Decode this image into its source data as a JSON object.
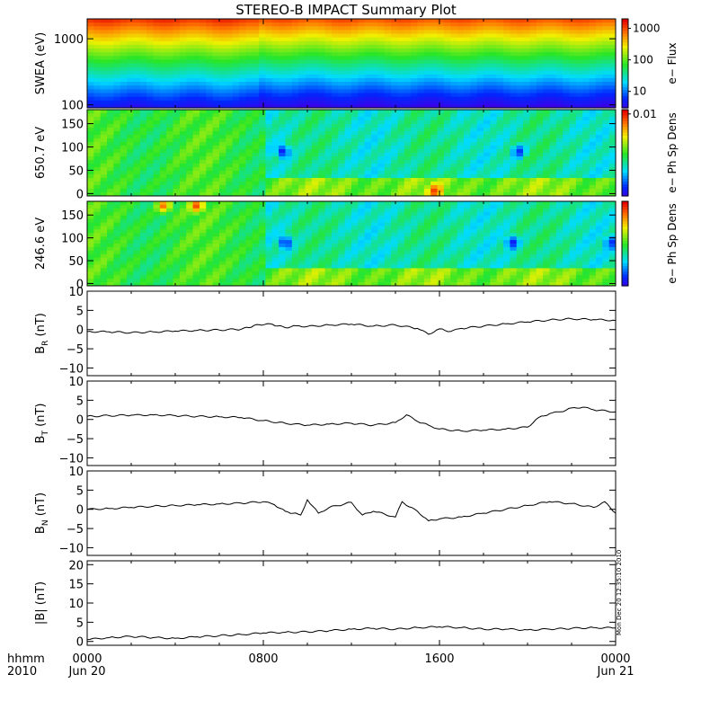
{
  "title": "STEREO-B IMPACT Summary Plot",
  "stamp": "Mon Dec 20 12:35:10 2010",
  "chart_data": [
    {
      "id": "swea",
      "type": "heatmap",
      "ylabel": "SWEA (eV)",
      "ylog": true,
      "ylim": [
        90,
        2000
      ],
      "yticks": [
        {
          "v": 100,
          "l": "100"
        },
        {
          "v": 1000,
          "l": "1000"
        }
      ],
      "colorbar": {
        "label": "e− Flux",
        "log": true,
        "range": [
          3,
          2000
        ],
        "ticks": [
          {
            "v": 10,
            "l": "10"
          },
          {
            "v": 100,
            "l": "100"
          },
          {
            "v": 1000,
            "l": "1000"
          }
        ]
      },
      "note": "flux decreases with energy; slight step down near 07:50"
    },
    {
      "id": "pad650",
      "type": "heatmap",
      "ylabel": "650.7 eV",
      "ylim": [
        -5,
        180
      ],
      "yticks": [
        {
          "v": 0,
          "l": "0"
        },
        {
          "v": 50,
          "l": "50"
        },
        {
          "v": 100,
          "l": "100"
        },
        {
          "v": 150,
          "l": "150"
        }
      ],
      "colorbar": {
        "label": "e− Ph Sp Dens",
        "ticks": [
          {
            "v": 0.95,
            "l": "0.01"
          }
        ]
      },
      "features": [
        {
          "t": 8.9,
          "pa": 90,
          "level": 0.05
        },
        {
          "t": 19.6,
          "pa": 90,
          "level": 0.1
        },
        {
          "t": 15.8,
          "pa": 5,
          "level": 0.95
        }
      ]
    },
    {
      "id": "pad246",
      "type": "heatmap",
      "ylabel": "246.6 eV",
      "ylim": [
        -5,
        180
      ],
      "yticks": [
        {
          "v": 0,
          "l": "0"
        },
        {
          "v": 50,
          "l": "50"
        },
        {
          "v": 100,
          "l": "100"
        },
        {
          "v": 150,
          "l": "150"
        }
      ],
      "colorbar": {
        "label": "e− Ph Sp Dens",
        "ticks": []
      },
      "features": [
        {
          "t": 9.0,
          "pa": 90,
          "level": 0.05
        },
        {
          "t": 19.3,
          "pa": 90,
          "level": 0.05
        },
        {
          "t": 23.8,
          "pa": 90,
          "level": 0.1
        },
        {
          "t": 5.0,
          "pa": 170,
          "level": 0.95
        },
        {
          "t": 3.5,
          "pa": 170,
          "level": 0.9
        }
      ]
    },
    {
      "id": "br",
      "type": "line",
      "ylabel": "B",
      "ysub": "R",
      "yunit": " (nT)",
      "ylim": [
        -12,
        10
      ],
      "yticks": [
        {
          "v": -10,
          "l": "−10"
        },
        {
          "v": -5,
          "l": "−5"
        },
        {
          "v": 0,
          "l": "0"
        },
        {
          "v": 5,
          "l": "5"
        },
        {
          "v": 10,
          "l": "10"
        }
      ],
      "x": [
        0,
        1,
        2,
        3,
        4,
        5,
        6,
        7,
        7.8,
        8.3,
        9,
        9.5,
        10,
        11,
        12,
        13,
        14,
        15,
        15.5,
        16,
        16.5,
        17,
        18,
        19,
        20,
        21,
        22,
        23,
        24
      ],
      "values": [
        -0.5,
        -0.6,
        -0.8,
        -0.6,
        -0.4,
        -0.2,
        -0.1,
        0.1,
        1.3,
        1.5,
        0.5,
        1.0,
        0.8,
        1.2,
        1.4,
        0.9,
        1.2,
        0.3,
        -1.2,
        0.2,
        -0.5,
        0.3,
        0.9,
        1.5,
        2.0,
        2.5,
        2.8,
        2.6,
        2.4
      ]
    },
    {
      "id": "bt",
      "type": "line",
      "ylabel": "B",
      "ysub": "T",
      "yunit": " (nT)",
      "ylim": [
        -12,
        10
      ],
      "yticks": [
        {
          "v": -10,
          "l": "−10"
        },
        {
          "v": -5,
          "l": "−5"
        },
        {
          "v": 0,
          "l": "0"
        },
        {
          "v": 5,
          "l": "5"
        },
        {
          "v": 10,
          "l": "10"
        }
      ],
      "x": [
        0,
        1,
        2,
        3,
        4,
        5,
        6,
        7,
        8,
        9,
        10,
        11,
        12,
        13,
        14,
        14.5,
        15,
        15.5,
        16,
        17,
        18,
        19,
        20,
        20.5,
        21,
        21.5,
        22,
        22.5,
        23,
        24
      ],
      "values": [
        0.8,
        1.0,
        1.1,
        1.2,
        1.0,
        0.8,
        0.7,
        0.5,
        -0.3,
        -1.0,
        -1.5,
        -1.2,
        -1.0,
        -1.5,
        -0.8,
        1.2,
        -0.5,
        -1.5,
        -2.5,
        -3.0,
        -2.8,
        -2.5,
        -2.0,
        0.5,
        1.5,
        2.0,
        3.0,
        3.2,
        2.5,
        2.0
      ]
    },
    {
      "id": "bn",
      "type": "line",
      "ylabel": "B",
      "ysub": "N",
      "yunit": " (nT)",
      "ylim": [
        -12,
        10
      ],
      "yticks": [
        {
          "v": -10,
          "l": "−10"
        },
        {
          "v": -5,
          "l": "−5"
        },
        {
          "v": 0,
          "l": "0"
        },
        {
          "v": 5,
          "l": "5"
        },
        {
          "v": 10,
          "l": "10"
        }
      ],
      "x": [
        0,
        1,
        2,
        3,
        4,
        5,
        6,
        7,
        8,
        8.5,
        9,
        9.7,
        10,
        10.5,
        11,
        12,
        12.5,
        13,
        14,
        14.3,
        14.5,
        15,
        15.5,
        16,
        17,
        18,
        19,
        20,
        21,
        22,
        23,
        23.5,
        24
      ],
      "values": [
        0.0,
        0.2,
        0.5,
        0.8,
        1.0,
        1.2,
        1.4,
        1.6,
        2.0,
        1.2,
        -0.5,
        -1.5,
        2.5,
        -1.0,
        0.5,
        1.8,
        -1.5,
        -0.5,
        -2.0,
        2.0,
        1.0,
        -0.5,
        -3.0,
        -2.5,
        -2.0,
        -1.0,
        0.0,
        1.0,
        2.0,
        1.5,
        0.5,
        2.0,
        -1.0
      ]
    },
    {
      "id": "bmag",
      "type": "line",
      "ylabel": "|B| (nT)",
      "ylim": [
        -1,
        21
      ],
      "yticks": [
        {
          "v": 0,
          "l": "0"
        },
        {
          "v": 5,
          "l": "5"
        },
        {
          "v": 10,
          "l": "10"
        },
        {
          "v": 15,
          "l": "15"
        },
        {
          "v": 20,
          "l": "20"
        }
      ],
      "x": [
        0,
        1,
        2,
        3,
        4,
        5,
        6,
        7,
        8,
        9,
        10,
        11,
        12,
        13,
        14,
        15,
        16,
        17,
        18,
        19,
        20,
        21,
        22,
        23,
        24
      ],
      "values": [
        0.5,
        1.0,
        1.3,
        1.0,
        0.8,
        1.2,
        1.5,
        1.8,
        2.2,
        2.4,
        2.5,
        2.8,
        3.2,
        3.4,
        3.2,
        3.6,
        3.8,
        3.6,
        3.2,
        3.2,
        3.0,
        3.2,
        3.4,
        3.6,
        3.5
      ]
    }
  ],
  "xaxis": {
    "range_hours": [
      0,
      24
    ],
    "ticks": [
      {
        "h": 0,
        "l": "0000"
      },
      {
        "h": 8,
        "l": "0800"
      },
      {
        "h": 16,
        "l": "1600"
      },
      {
        "h": 24,
        "l": "0000"
      }
    ],
    "row1_label": "hhmm",
    "row2_label": "2010",
    "date_start": "Jun 20",
    "date_end": "Jun 21"
  }
}
